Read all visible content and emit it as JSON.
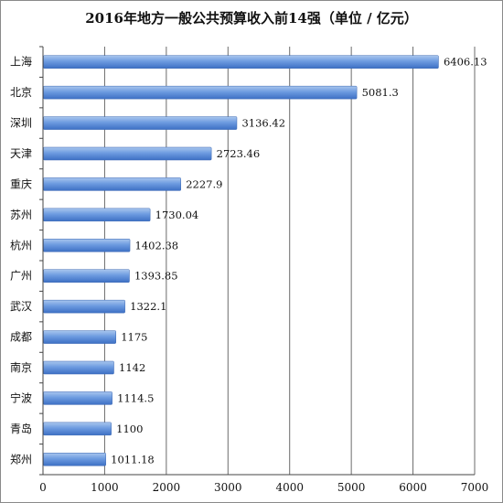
{
  "chart_data": {
    "type": "bar",
    "orientation": "horizontal",
    "title": "2016年地方一般公共预算收入前14强（单位 / 亿元）",
    "categories": [
      "上海",
      "北京",
      "深圳",
      "天津",
      "重庆",
      "苏州",
      "杭州",
      "广州",
      "武汉",
      "成都",
      "南京",
      "宁波",
      "青岛",
      "郑州"
    ],
    "values": [
      6406.13,
      5081.3,
      3136.42,
      2723.46,
      2227.9,
      1730.04,
      1402.38,
      1393.85,
      1322.1,
      1175,
      1142,
      1114.5,
      1100,
      1011.18
    ],
    "value_labels": [
      "6406.13",
      "5081.3",
      "3136.42",
      "2723.46",
      "2227.9",
      "1730.04",
      "1402.38",
      "1393.85",
      "1322.1",
      "1175",
      "1142",
      "1114.5",
      "1100",
      "1011.18"
    ],
    "xlim": [
      0,
      7000
    ],
    "xticks": [
      0,
      1000,
      2000,
      3000,
      4000,
      5000,
      6000,
      7000
    ],
    "xtick_labels": [
      "0",
      "1000",
      "2000",
      "3000",
      "4000",
      "5000",
      "6000",
      "7000"
    ],
    "grid": true,
    "bar_color": "#5b8fd6"
  }
}
